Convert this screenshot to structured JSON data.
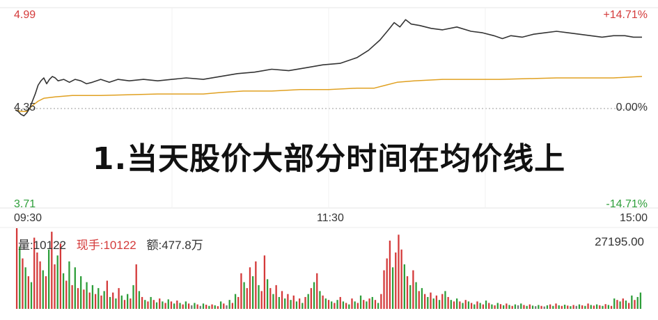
{
  "chart_data": [
    {
      "type": "line",
      "title": "",
      "caption": "1.当天股价大部分时间在均价线上",
      "y_axis_left": {
        "top": "4.99",
        "mid": "4.35",
        "bottom": "3.71"
      },
      "y_axis_right": {
        "top": "+14.71%",
        "mid": "0.00%",
        "bottom": "-14.71%"
      },
      "x_ticks": [
        "09:30",
        "11:30",
        "15:00"
      ],
      "ylim": [
        3.71,
        4.99
      ],
      "reference_price": 4.35,
      "grid": true,
      "series": [
        {
          "role": "price",
          "color": "#333333",
          "points": [
            [
              0,
              4.34
            ],
            [
              1,
              4.33
            ],
            [
              2,
              4.31
            ],
            [
              3,
              4.3
            ],
            [
              4,
              4.32
            ],
            [
              5,
              4.35
            ],
            [
              6,
              4.4
            ],
            [
              7,
              4.45
            ],
            [
              8,
              4.51
            ],
            [
              9,
              4.54
            ],
            [
              10,
              4.56
            ],
            [
              11,
              4.52
            ],
            [
              12,
              4.55
            ],
            [
              13,
              4.57
            ],
            [
              14,
              4.56
            ],
            [
              15,
              4.54
            ],
            [
              17,
              4.55
            ],
            [
              19,
              4.53
            ],
            [
              21,
              4.55
            ],
            [
              23,
              4.54
            ],
            [
              25,
              4.52
            ],
            [
              27,
              4.53
            ],
            [
              30,
              4.55
            ],
            [
              33,
              4.53
            ],
            [
              36,
              4.55
            ],
            [
              40,
              4.54
            ],
            [
              45,
              4.55
            ],
            [
              50,
              4.54
            ],
            [
              55,
              4.55
            ],
            [
              60,
              4.56
            ],
            [
              66,
              4.55
            ],
            [
              72,
              4.57
            ],
            [
              78,
              4.59
            ],
            [
              84,
              4.6
            ],
            [
              90,
              4.62
            ],
            [
              96,
              4.61
            ],
            [
              102,
              4.63
            ],
            [
              108,
              4.65
            ],
            [
              114,
              4.66
            ],
            [
              120,
              4.7
            ],
            [
              124,
              4.75
            ],
            [
              128,
              4.82
            ],
            [
              131,
              4.89
            ],
            [
              133,
              4.94
            ],
            [
              135,
              4.91
            ],
            [
              137,
              4.96
            ],
            [
              139,
              4.93
            ],
            [
              142,
              4.92
            ],
            [
              146,
              4.9
            ],
            [
              150,
              4.89
            ],
            [
              155,
              4.91
            ],
            [
              160,
              4.88
            ],
            [
              164,
              4.87
            ],
            [
              168,
              4.85
            ],
            [
              171,
              4.83
            ],
            [
              174,
              4.85
            ],
            [
              178,
              4.84
            ],
            [
              182,
              4.86
            ],
            [
              186,
              4.87
            ],
            [
              190,
              4.88
            ],
            [
              194,
              4.87
            ],
            [
              198,
              4.86
            ],
            [
              202,
              4.85
            ],
            [
              206,
              4.84
            ],
            [
              210,
              4.85
            ],
            [
              214,
              4.85
            ],
            [
              217,
              4.84
            ],
            [
              220,
              4.84
            ]
          ]
        },
        {
          "role": "average",
          "color": "#e0a020",
          "points": [
            [
              0,
              4.34
            ],
            [
              2,
              4.33
            ],
            [
              4,
              4.33
            ],
            [
              6,
              4.37
            ],
            [
              8,
              4.4
            ],
            [
              10,
              4.42
            ],
            [
              14,
              4.43
            ],
            [
              20,
              4.44
            ],
            [
              30,
              4.44
            ],
            [
              50,
              4.45
            ],
            [
              66,
              4.45
            ],
            [
              72,
              4.46
            ],
            [
              80,
              4.47
            ],
            [
              90,
              4.47
            ],
            [
              100,
              4.48
            ],
            [
              110,
              4.48
            ],
            [
              120,
              4.49
            ],
            [
              126,
              4.49
            ],
            [
              130,
              4.51
            ],
            [
              134,
              4.53
            ],
            [
              140,
              4.54
            ],
            [
              150,
              4.55
            ],
            [
              170,
              4.55
            ],
            [
              190,
              4.56
            ],
            [
              210,
              4.56
            ],
            [
              220,
              4.57
            ]
          ]
        }
      ]
    },
    {
      "type": "bar",
      "title": "",
      "labels": {
        "volume": "量:10122",
        "current_hand": "现手:10122",
        "amount": "额:477.8万",
        "max": "27195.00"
      },
      "ylim": [
        0,
        27195
      ],
      "colors": {
        "up": "#d43a3a",
        "down": "#2e9e3a",
        "flat": "#777777"
      },
      "bars": [
        [
          27195,
          "u"
        ],
        [
          21000,
          "d"
        ],
        [
          17000,
          "u"
        ],
        [
          14000,
          "d"
        ],
        [
          11000,
          "u"
        ],
        [
          9000,
          "d"
        ],
        [
          24000,
          "u"
        ],
        [
          19000,
          "u"
        ],
        [
          16000,
          "u"
        ],
        [
          13000,
          "d"
        ],
        [
          11000,
          "u"
        ],
        [
          20000,
          "d"
        ],
        [
          26000,
          "u"
        ],
        [
          15000,
          "u"
        ],
        [
          18000,
          "d"
        ],
        [
          22000,
          "u"
        ],
        [
          12000,
          "d"
        ],
        [
          9500,
          "u"
        ],
        [
          16000,
          "d"
        ],
        [
          8000,
          "u"
        ],
        [
          14000,
          "d"
        ],
        [
          7000,
          "u"
        ],
        [
          11000,
          "d"
        ],
        [
          6500,
          "u"
        ],
        [
          9000,
          "d"
        ],
        [
          5500,
          "u"
        ],
        [
          8000,
          "d"
        ],
        [
          5000,
          "u"
        ],
        [
          7000,
          "d"
        ],
        [
          4500,
          "u"
        ],
        [
          6000,
          "d"
        ],
        [
          9500,
          "u"
        ],
        [
          4000,
          "d"
        ],
        [
          5500,
          "u"
        ],
        [
          3500,
          "d"
        ],
        [
          7000,
          "u"
        ],
        [
          4500,
          "d"
        ],
        [
          3000,
          "u"
        ],
        [
          5000,
          "d"
        ],
        [
          3500,
          "u"
        ],
        [
          8000,
          "d"
        ],
        [
          15000,
          "u"
        ],
        [
          6000,
          "d"
        ],
        [
          4000,
          "u"
        ],
        [
          3000,
          "d"
        ],
        [
          2500,
          "u"
        ],
        [
          4000,
          "d"
        ],
        [
          3000,
          "u"
        ],
        [
          2200,
          "d"
        ],
        [
          3500,
          "u"
        ],
        [
          2500,
          "d"
        ],
        [
          2000,
          "u"
        ],
        [
          3200,
          "d"
        ],
        [
          2500,
          "u"
        ],
        [
          1800,
          "d"
        ],
        [
          2800,
          "u"
        ],
        [
          2000,
          "d"
        ],
        [
          1500,
          "u"
        ],
        [
          2500,
          "d"
        ],
        [
          1800,
          "u"
        ],
        [
          1200,
          "f"
        ],
        [
          2000,
          "d"
        ],
        [
          1500,
          "u"
        ],
        [
          1000,
          "f"
        ],
        [
          1800,
          "d"
        ],
        [
          1400,
          "u"
        ],
        [
          1000,
          "d"
        ],
        [
          1500,
          "u"
        ],
        [
          1200,
          "d"
        ],
        [
          900,
          "u"
        ],
        [
          2500,
          "d"
        ],
        [
          1800,
          "u"
        ],
        [
          1200,
          "f"
        ],
        [
          3000,
          "d"
        ],
        [
          2000,
          "u"
        ],
        [
          5000,
          "d"
        ],
        [
          4000,
          "u"
        ],
        [
          12000,
          "u"
        ],
        [
          9000,
          "d"
        ],
        [
          7000,
          "u"
        ],
        [
          14000,
          "u"
        ],
        [
          11000,
          "d"
        ],
        [
          16000,
          "u"
        ],
        [
          8000,
          "d"
        ],
        [
          6000,
          "u"
        ],
        [
          18000,
          "u"
        ],
        [
          10000,
          "d"
        ],
        [
          7000,
          "u"
        ],
        [
          5000,
          "d"
        ],
        [
          8000,
          "u"
        ],
        [
          4000,
          "d"
        ],
        [
          6000,
          "u"
        ],
        [
          3500,
          "d"
        ],
        [
          5000,
          "u"
        ],
        [
          3000,
          "d"
        ],
        [
          4500,
          "u"
        ],
        [
          2500,
          "d"
        ],
        [
          3500,
          "u"
        ],
        [
          2000,
          "d"
        ],
        [
          4000,
          "u"
        ],
        [
          5000,
          "d"
        ],
        [
          7000,
          "u"
        ],
        [
          9000,
          "d"
        ],
        [
          12000,
          "u"
        ],
        [
          6000,
          "d"
        ],
        [
          4500,
          "u"
        ],
        [
          3500,
          "d"
        ],
        [
          3000,
          "u"
        ],
        [
          2500,
          "d"
        ],
        [
          2000,
          "u"
        ],
        [
          3000,
          "d"
        ],
        [
          4000,
          "u"
        ],
        [
          2500,
          "d"
        ],
        [
          2000,
          "u"
        ],
        [
          1500,
          "d"
        ],
        [
          3500,
          "u"
        ],
        [
          2500,
          "d"
        ],
        [
          2000,
          "u"
        ],
        [
          4500,
          "d"
        ],
        [
          3000,
          "u"
        ],
        [
          2500,
          "d"
        ],
        [
          3500,
          "u"
        ],
        [
          4000,
          "d"
        ],
        [
          3000,
          "u"
        ],
        [
          2000,
          "d"
        ],
        [
          5000,
          "u"
        ],
        [
          13000,
          "u"
        ],
        [
          17000,
          "u"
        ],
        [
          23000,
          "u"
        ],
        [
          14000,
          "d"
        ],
        [
          19000,
          "u"
        ],
        [
          25000,
          "u"
        ],
        [
          20000,
          "u"
        ],
        [
          15000,
          "d"
        ],
        [
          11000,
          "u"
        ],
        [
          8000,
          "d"
        ],
        [
          13000,
          "u"
        ],
        [
          9000,
          "d"
        ],
        [
          6000,
          "u"
        ],
        [
          7000,
          "d"
        ],
        [
          5000,
          "u"
        ],
        [
          4000,
          "d"
        ],
        [
          5500,
          "u"
        ],
        [
          3500,
          "d"
        ],
        [
          4500,
          "u"
        ],
        [
          3000,
          "d"
        ],
        [
          5000,
          "u"
        ],
        [
          6000,
          "d"
        ],
        [
          4000,
          "u"
        ],
        [
          3000,
          "d"
        ],
        [
          2500,
          "u"
        ],
        [
          3500,
          "d"
        ],
        [
          2500,
          "u"
        ],
        [
          2000,
          "d"
        ],
        [
          3000,
          "u"
        ],
        [
          2500,
          "d"
        ],
        [
          2000,
          "u"
        ],
        [
          1500,
          "d"
        ],
        [
          2500,
          "u"
        ],
        [
          2000,
          "d"
        ],
        [
          1500,
          "u"
        ],
        [
          2800,
          "d"
        ],
        [
          2000,
          "u"
        ],
        [
          1500,
          "d"
        ],
        [
          1200,
          "u"
        ],
        [
          2000,
          "d"
        ],
        [
          1600,
          "u"
        ],
        [
          1200,
          "d"
        ],
        [
          1800,
          "u"
        ],
        [
          1300,
          "d"
        ],
        [
          1000,
          "u"
        ],
        [
          1500,
          "d"
        ],
        [
          1200,
          "f"
        ],
        [
          1800,
          "d"
        ],
        [
          1300,
          "u"
        ],
        [
          1000,
          "d"
        ],
        [
          1500,
          "u"
        ],
        [
          1100,
          "d"
        ],
        [
          900,
          "f"
        ],
        [
          1300,
          "d"
        ],
        [
          1000,
          "u"
        ],
        [
          800,
          "f"
        ],
        [
          1200,
          "d"
        ],
        [
          1500,
          "u"
        ],
        [
          1000,
          "d"
        ],
        [
          1800,
          "u"
        ],
        [
          1200,
          "d"
        ],
        [
          1000,
          "u"
        ],
        [
          1400,
          "d"
        ],
        [
          1100,
          "u"
        ],
        [
          900,
          "d"
        ],
        [
          1300,
          "u"
        ],
        [
          1000,
          "f"
        ],
        [
          1500,
          "d"
        ],
        [
          1200,
          "u"
        ],
        [
          1000,
          "d"
        ],
        [
          1800,
          "u"
        ],
        [
          1300,
          "d"
        ],
        [
          1100,
          "u"
        ],
        [
          1500,
          "d"
        ],
        [
          1200,
          "u"
        ],
        [
          1000,
          "d"
        ],
        [
          1600,
          "u"
        ],
        [
          1300,
          "d"
        ],
        [
          1000,
          "u"
        ],
        [
          3500,
          "d"
        ],
        [
          3000,
          "u"
        ],
        [
          2500,
          "d"
        ],
        [
          3500,
          "u"
        ],
        [
          2800,
          "d"
        ],
        [
          2000,
          "u"
        ],
        [
          4500,
          "d"
        ],
        [
          3000,
          "u"
        ],
        [
          4000,
          "d"
        ],
        [
          5500,
          "d"
        ]
      ]
    }
  ]
}
